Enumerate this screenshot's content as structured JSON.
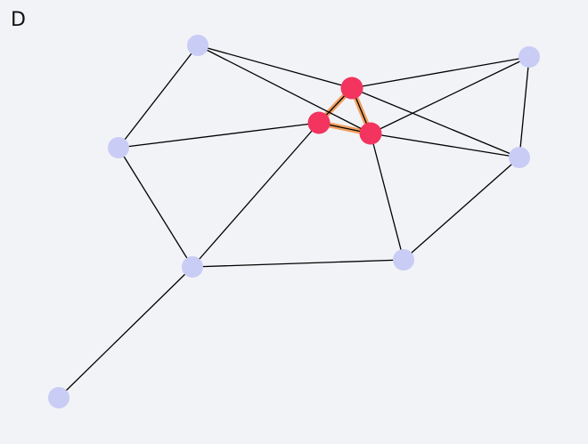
{
  "panel_label": "D",
  "colors": {
    "background": "#f2f3f6",
    "node": "#c9ccf5",
    "highlight_node": "#f2345e",
    "highlight_edge": "#f0a060",
    "edge": "#000000"
  },
  "graph": {
    "nodes": [
      {
        "id": "n1",
        "highlighted": false
      },
      {
        "id": "n2",
        "highlighted": false
      },
      {
        "id": "n3",
        "highlighted": false
      },
      {
        "id": "n4",
        "highlighted": true
      },
      {
        "id": "n5",
        "highlighted": true
      },
      {
        "id": "n6",
        "highlighted": true
      },
      {
        "id": "n7",
        "highlighted": false
      },
      {
        "id": "n8",
        "highlighted": false
      },
      {
        "id": "n9",
        "highlighted": false
      },
      {
        "id": "n10",
        "highlighted": false
      }
    ],
    "edges": [
      [
        "n1",
        "n2"
      ],
      [
        "n1",
        "n4"
      ],
      [
        "n1",
        "n6"
      ],
      [
        "n2",
        "n5"
      ],
      [
        "n2",
        "n9"
      ],
      [
        "n4",
        "n3"
      ],
      [
        "n4",
        "n7"
      ],
      [
        "n3",
        "n7"
      ],
      [
        "n3",
        "n6"
      ],
      [
        "n5",
        "n9"
      ],
      [
        "n6",
        "n7"
      ],
      [
        "n6",
        "n8"
      ],
      [
        "n7",
        "n8"
      ],
      [
        "n8",
        "n9"
      ],
      [
        "n9",
        "n10"
      ],
      [
        "n4",
        "n5"
      ],
      [
        "n5",
        "n6"
      ],
      [
        "n4",
        "n6"
      ]
    ],
    "highlighted_cycle": [
      "n4",
      "n5",
      "n6"
    ]
  }
}
